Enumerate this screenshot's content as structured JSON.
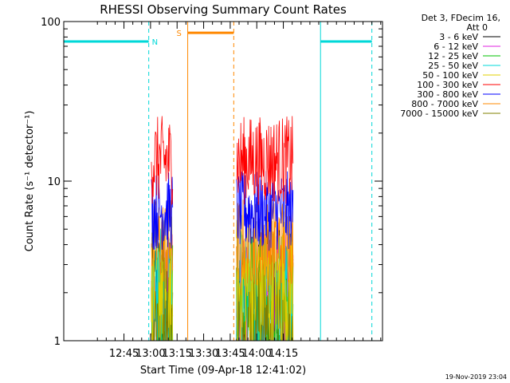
{
  "chart_data": {
    "type": "line",
    "title": "RHESSI Observing Summary Count Rates",
    "xlabel": "Start Time (09-Apr-18 12:41:02)",
    "ylabel": "Count Rate (s⁻¹ detector⁻¹)",
    "yscale": "log",
    "ylim": [
      1,
      100
    ],
    "xlim_minutes": [
      -30,
      150
    ],
    "x_tick_labels": [
      "12:45",
      "13:00",
      "13:15",
      "13:30",
      "13:45",
      "14:00",
      "14:15"
    ],
    "x_tick_minutes": [
      4,
      19,
      34,
      49,
      64,
      79,
      94
    ],
    "y_tick_labels": [
      "1",
      "10",
      "100"
    ],
    "y_tick_values": [
      1,
      10,
      100
    ],
    "grid": false,
    "legend_header": [
      "Det 3, FDecim 16,",
      "Att 0"
    ],
    "legend_position": "right",
    "footer": "19-Nov-2019 23:04",
    "series": [
      {
        "name": "3 - 6 keV",
        "color": "#000000",
        "level": 1.6,
        "spread": 0.55
      },
      {
        "name": "6 - 12 keV",
        "color": "#e020e0",
        "level": 1.5,
        "spread": 0.5
      },
      {
        "name": "12 - 25 keV",
        "color": "#00c000",
        "level": 1.5,
        "spread": 0.5
      },
      {
        "name": "25 - 50 keV",
        "color": "#00d8d8",
        "level": 1.6,
        "spread": 0.5
      },
      {
        "name": "50 - 100 keV",
        "color": "#e0d000",
        "level": 2.3,
        "spread": 0.45
      },
      {
        "name": "100 - 300 keV",
        "color": "#ff0000",
        "level": 13.5,
        "spread": 0.28
      },
      {
        "name": "300 - 800 keV",
        "color": "#0000ff",
        "level": 6.5,
        "spread": 0.25
      },
      {
        "name": "800 - 7000 keV",
        "color": "#ff8800",
        "level": 4.2,
        "spread": 0.28
      },
      {
        "name": "7000 - 15000 keV",
        "color": "#808000",
        "level": 1.4,
        "spread": 0.45
      }
    ],
    "data_intervals_minutes": [
      [
        19.5,
        31.5
      ],
      [
        67.5,
        99.5
      ]
    ],
    "flags": [
      {
        "label": "N",
        "color": "#00d8d8",
        "level": 75,
        "start": -30,
        "end": 18,
        "solid_at": -30,
        "dashed_at": 18
      },
      {
        "label": "S",
        "color": "#ff8800",
        "level": 85,
        "start": 40,
        "end": 66,
        "solid_at": 40,
        "dashed_at": 66
      },
      {
        "label": "",
        "color": "#00d8d8",
        "level": 75,
        "start": 115,
        "end": 144,
        "solid_at": 115,
        "dashed_at": 144
      }
    ]
  }
}
